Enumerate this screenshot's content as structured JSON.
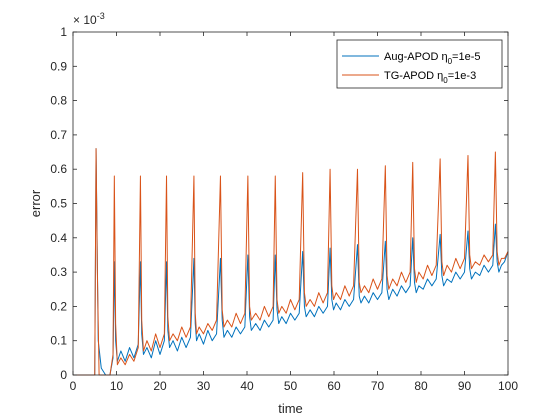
{
  "chart_data": {
    "type": "line",
    "xlabel": "time",
    "ylabel": "error",
    "xlim": [
      0,
      100
    ],
    "ylim": [
      0,
      0.001
    ],
    "x_ticks": [
      0,
      10,
      20,
      30,
      40,
      50,
      60,
      70,
      80,
      90,
      100
    ],
    "y_ticks": [
      0,
      0.0001,
      0.0002,
      0.0003,
      0.0004,
      0.0005,
      0.0006,
      0.0007,
      0.0008,
      0.0009,
      0.001
    ],
    "x_tick_labels": [
      "0",
      "10",
      "20",
      "30",
      "40",
      "50",
      "60",
      "70",
      "80",
      "90",
      "100"
    ],
    "y_tick_labels": [
      "0",
      "0.1",
      "0.2",
      "0.3",
      "0.4",
      "0.5",
      "0.6",
      "0.7",
      "0.8",
      "0.9",
      "1"
    ],
    "y_exponent": {
      "base": "× 10",
      "power": "-3"
    },
    "grid": false,
    "legend_location": "top-right",
    "series": [
      {
        "name_main": "Aug-APOD η",
        "name_sub": "0",
        "name_tail": "=1e-5",
        "color": "#0072BD",
        "x": [
          0,
          5.0,
          5.3,
          5.8,
          6.5,
          7.5,
          8.5,
          9.2,
          9.5,
          9.8,
          10.2,
          11,
          12,
          13,
          14,
          15,
          15.5,
          15.8,
          16.2,
          17,
          18,
          19,
          20,
          21,
          21.5,
          21.8,
          22.2,
          23,
          24,
          25,
          26,
          27,
          27.8,
          28.1,
          28.4,
          29,
          30,
          31,
          32,
          33,
          33.9,
          34.3,
          34.7,
          35.5,
          36.5,
          37.5,
          38.5,
          39.5,
          40.2,
          40.6,
          41.0,
          42,
          43,
          44,
          45,
          46,
          46.5,
          46.9,
          47.3,
          48,
          49,
          50,
          51,
          52,
          52.8,
          53.2,
          53.6,
          54.5,
          55.5,
          56.5,
          57.5,
          58.5,
          59.1,
          59.5,
          59.9,
          60.5,
          61.5,
          62.5,
          63.5,
          64.5,
          65.4,
          65.8,
          66.2,
          67,
          68,
          69,
          70,
          71,
          71.8,
          72.2,
          72.6,
          73.5,
          74.5,
          75.5,
          76.5,
          77.5,
          78.1,
          78.5,
          78.9,
          79.5,
          80.5,
          81.5,
          82.5,
          83.5,
          84.4,
          84.8,
          85.2,
          86,
          87,
          88,
          89,
          90,
          90.8,
          91.2,
          91.6,
          92.5,
          93.5,
          94.5,
          95.5,
          96.5,
          97.1,
          97.5,
          97.9,
          98.5,
          99.2,
          100
        ],
        "y": [
          0,
          0,
          0.00066,
          0.0001,
          2e-05,
          0,
          0,
          5e-05,
          0.00033,
          0.0001,
          4e-05,
          7e-05,
          4e-05,
          8e-05,
          5e-05,
          9e-05,
          0.00033,
          0.00012,
          6e-05,
          8e-05,
          5e-05,
          0.0001,
          6e-05,
          0.0001,
          0.00033,
          0.00013,
          8e-05,
          0.0001,
          7e-05,
          0.00011,
          8e-05,
          0.00011,
          0.00034,
          0.00015,
          0.0001,
          0.00012,
          9e-05,
          0.00013,
          0.0001,
          0.00012,
          0.00034,
          0.00016,
          0.00011,
          0.00013,
          0.00011,
          0.00014,
          0.00012,
          0.00014,
          0.00035,
          0.00017,
          0.00013,
          0.00015,
          0.00013,
          0.00016,
          0.00014,
          0.00016,
          0.00035,
          0.00019,
          0.00015,
          0.00017,
          0.00015,
          0.00018,
          0.00016,
          0.00018,
          0.00036,
          0.0002,
          0.00017,
          0.00019,
          0.00017,
          0.0002,
          0.00018,
          0.0002,
          0.00037,
          0.00022,
          0.00019,
          0.00021,
          0.00019,
          0.00022,
          0.0002,
          0.00022,
          0.00038,
          0.00023,
          0.00021,
          0.00023,
          0.00021,
          0.00024,
          0.00022,
          0.00024,
          0.00039,
          0.00025,
          0.00022,
          0.00025,
          0.00023,
          0.00026,
          0.00024,
          0.00026,
          0.0004,
          0.00027,
          0.00024,
          0.00026,
          0.00025,
          0.00028,
          0.00026,
          0.00028,
          0.00041,
          0.00029,
          0.00026,
          0.00028,
          0.00027,
          0.0003,
          0.00028,
          0.0003,
          0.00042,
          0.00031,
          0.00028,
          0.0003,
          0.00029,
          0.00032,
          0.0003,
          0.00032,
          0.00044,
          0.00033,
          0.0003,
          0.00032,
          0.00033,
          0.00036
        ]
      },
      {
        "name_main": "TG-APOD η",
        "name_sub": "0",
        "name_tail": "=1e-3",
        "color": "#D95319",
        "x": [
          0,
          5.0,
          5.3,
          5.6,
          6,
          7,
          8.5,
          9.2,
          9.5,
          9.8,
          10.2,
          11,
          12,
          13,
          14,
          15,
          15.5,
          15.8,
          16.2,
          17,
          18,
          19,
          20,
          21,
          21.5,
          21.8,
          22.2,
          23,
          24,
          25,
          26,
          27,
          27.8,
          28.1,
          28.4,
          29,
          30,
          31,
          32,
          33,
          33.9,
          34.3,
          34.7,
          35.5,
          36.5,
          37.5,
          38.5,
          39.5,
          40.2,
          40.6,
          41.0,
          42,
          43,
          44,
          45,
          46,
          46.5,
          46.9,
          47.3,
          48,
          49,
          50,
          51,
          52,
          52.8,
          53.2,
          53.6,
          54.5,
          55.5,
          56.5,
          57.5,
          58.5,
          59.1,
          59.5,
          59.9,
          60.5,
          61.5,
          62.5,
          63.5,
          64.5,
          65.4,
          65.8,
          66.2,
          67,
          68,
          69,
          70,
          71,
          71.8,
          72.2,
          72.6,
          73.5,
          74.5,
          75.5,
          76.5,
          77.5,
          78.1,
          78.5,
          78.9,
          79.5,
          80.5,
          81.5,
          82.5,
          83.5,
          84.4,
          84.8,
          85.2,
          86,
          87,
          88,
          89,
          90,
          90.8,
          91.2,
          91.6,
          92.5,
          93.5,
          94.5,
          95.5,
          96.5,
          97.1,
          97.5,
          97.9,
          98.5,
          99.2,
          100
        ],
        "y": [
          0,
          0,
          0.00066,
          0.0003,
          0,
          0,
          0,
          6e-05,
          0.00058,
          0.00015,
          3e-05,
          5e-05,
          3e-05,
          6e-05,
          4e-05,
          8e-05,
          0.00058,
          0.00016,
          7e-05,
          0.0001,
          7e-05,
          0.00012,
          8e-05,
          0.00012,
          0.00058,
          0.00017,
          0.0001,
          0.00012,
          0.0001,
          0.00014,
          0.00011,
          0.00014,
          0.00058,
          0.00018,
          0.00012,
          0.00014,
          0.00012,
          0.00015,
          0.00013,
          0.00016,
          0.00058,
          0.00019,
          0.00014,
          0.00016,
          0.00014,
          0.00018,
          0.00015,
          0.00018,
          0.00058,
          0.0002,
          0.00016,
          0.00018,
          0.00016,
          0.0002,
          0.00017,
          0.0002,
          0.00058,
          0.00022,
          0.00018,
          0.0002,
          0.00018,
          0.00022,
          0.00019,
          0.00022,
          0.00059,
          0.00024,
          0.0002,
          0.00022,
          0.0002,
          0.00024,
          0.00021,
          0.00024,
          0.0006,
          0.00026,
          0.00022,
          0.00024,
          0.00022,
          0.00026,
          0.00023,
          0.00026,
          0.0006,
          0.00027,
          0.00024,
          0.00026,
          0.00024,
          0.00028,
          0.00025,
          0.00028,
          0.00061,
          0.00029,
          0.00025,
          0.00028,
          0.00026,
          0.0003,
          0.00027,
          0.0003,
          0.00062,
          0.00031,
          0.00027,
          0.0003,
          0.00028,
          0.00032,
          0.00029,
          0.00032,
          0.00063,
          0.00033,
          0.00029,
          0.00032,
          0.0003,
          0.00034,
          0.00031,
          0.00034,
          0.00064,
          0.00035,
          0.00031,
          0.00033,
          0.00032,
          0.00035,
          0.00033,
          0.00035,
          0.00065,
          0.00036,
          0.00032,
          0.00034,
          0.00034,
          0.00036
        ]
      }
    ]
  }
}
